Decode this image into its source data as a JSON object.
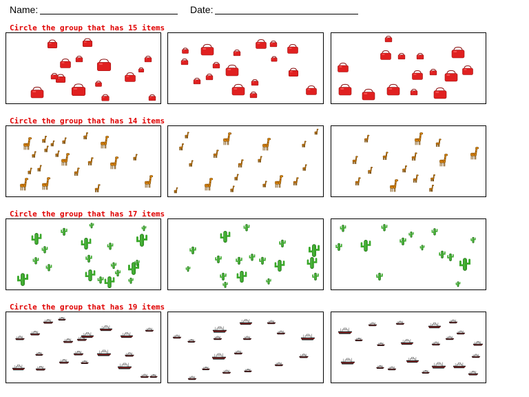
{
  "header": {
    "name_label": "Name:",
    "date_label": "Date:"
  },
  "rows": [
    {
      "instruction": "Circle the group that has 15 items",
      "item": "handbag-icon",
      "color": "#e02020"
    },
    {
      "instruction": "Circle the group that has 14 items",
      "item": "giraffe-icon",
      "color": "#e08a10"
    },
    {
      "instruction": "Circle the group that has 17 items",
      "item": "cactus-icon",
      "color": "#3aa82a"
    },
    {
      "instruction": "Circle the group that has 19 items",
      "item": "ship-icon",
      "color": "#222222"
    }
  ]
}
